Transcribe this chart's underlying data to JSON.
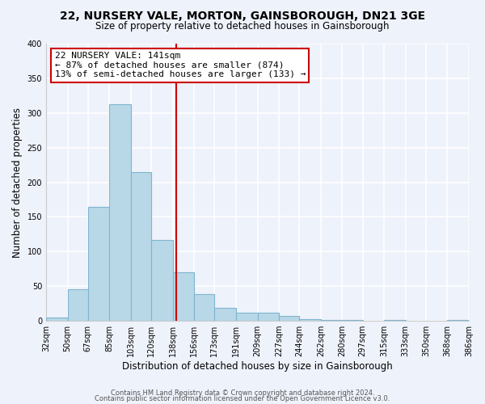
{
  "title": "22, NURSERY VALE, MORTON, GAINSBOROUGH, DN21 3GE",
  "subtitle": "Size of property relative to detached houses in Gainsborough",
  "xlabel": "Distribution of detached houses by size in Gainsborough",
  "ylabel": "Number of detached properties",
  "bin_edges": [
    32,
    50,
    67,
    85,
    103,
    120,
    138,
    156,
    173,
    191,
    209,
    227,
    244,
    262,
    280,
    297,
    315,
    333,
    350,
    368,
    386
  ],
  "bin_labels": [
    "32sqm",
    "50sqm",
    "67sqm",
    "85sqm",
    "103sqm",
    "120sqm",
    "138sqm",
    "156sqm",
    "173sqm",
    "191sqm",
    "209sqm",
    "227sqm",
    "244sqm",
    "262sqm",
    "280sqm",
    "297sqm",
    "315sqm",
    "333sqm",
    "350sqm",
    "368sqm",
    "386sqm"
  ],
  "counts": [
    5,
    46,
    165,
    312,
    215,
    117,
    70,
    38,
    19,
    12,
    12,
    7,
    3,
    1,
    1,
    0,
    1,
    0,
    0,
    1
  ],
  "bar_color": "#b8d8e8",
  "bar_edge_color": "#7fb5ce",
  "vline_x": 141,
  "vline_color": "#cc0000",
  "annotation_line1": "22 NURSERY VALE: 141sqm",
  "annotation_line2": "← 87% of detached houses are smaller (874)",
  "annotation_line3": "13% of semi-detached houses are larger (133) →",
  "annotation_box_color": "white",
  "annotation_box_edge_color": "#cc0000",
  "ylim": [
    0,
    400
  ],
  "yticks": [
    0,
    50,
    100,
    150,
    200,
    250,
    300,
    350,
    400
  ],
  "footer_line1": "Contains HM Land Registry data © Crown copyright and database right 2024.",
  "footer_line2": "Contains public sector information licensed under the Open Government Licence v3.0.",
  "bg_color": "#eef2fb",
  "grid_color": "white",
  "title_fontsize": 10,
  "subtitle_fontsize": 8.5,
  "ylabel_fontsize": 8.5,
  "xlabel_fontsize": 8.5,
  "tick_fontsize": 7,
  "annotation_fontsize": 8,
  "footer_fontsize": 6
}
